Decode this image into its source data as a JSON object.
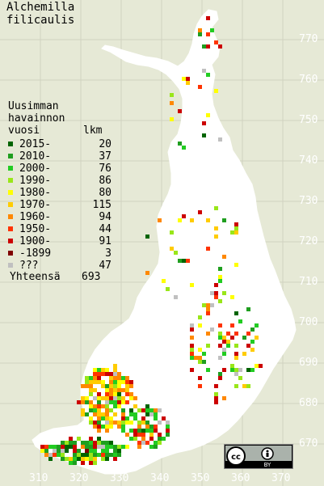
{
  "title": {
    "line1": "Alchemilla",
    "line2": "filicaulis"
  },
  "legend": {
    "header": {
      "line1": "Uusimman",
      "line2": "havainnon",
      "col1": "vuosi",
      "col2": "lkm"
    },
    "rows": [
      {
        "label": "2015-",
        "count": "20",
        "color": "#006400"
      },
      {
        "label": "2010-",
        "count": "37",
        "color": "#1f9e1f"
      },
      {
        "label": "2000-",
        "count": "76",
        "color": "#22cc22"
      },
      {
        "label": "1990-",
        "count": "86",
        "color": "#99e619"
      },
      {
        "label": "1980-",
        "count": "80",
        "color": "#ffff00"
      },
      {
        "label": "1970-",
        "count": "115",
        "color": "#ffcc00"
      },
      {
        "label": "1960-",
        "count": "94",
        "color": "#ff8800"
      },
      {
        "label": "1950-",
        "count": "44",
        "color": "#ff3300"
      },
      {
        "label": "1900-",
        "count": "91",
        "color": "#cc0000"
      },
      {
        "label": "-1899",
        "count": "3",
        "color": "#800000"
      },
      {
        "label": "???",
        "count": "47",
        "color": "#c0c0c0"
      }
    ],
    "total": {
      "label": "Yhteensä",
      "count": "693"
    }
  },
  "axes": {
    "y_ticks": [
      "770",
      "760",
      "750",
      "740",
      "730",
      "720",
      "710",
      "700",
      "690",
      "680",
      "670"
    ],
    "x_ticks": [
      "310",
      "320",
      "330",
      "340",
      "350",
      "360",
      "370"
    ]
  },
  "colors": {
    "background": "#e6e9d6",
    "land": "#ffffff",
    "grid": "#d0d3c0",
    "tick_text": "#ffffff"
  },
  "badge": {
    "icons": [
      "cc-icon",
      "by-icon"
    ],
    "text": "BY"
  }
}
